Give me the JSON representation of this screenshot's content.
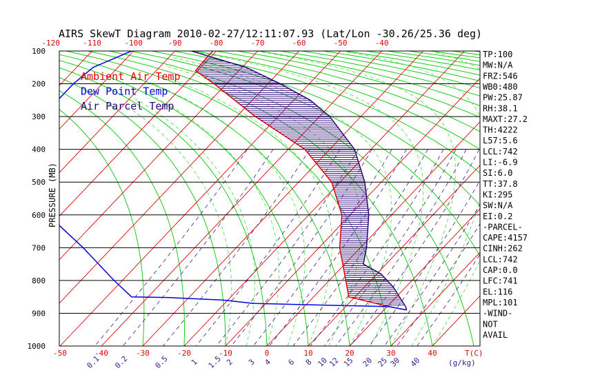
{
  "chart_data": {
    "type": "skewt",
    "title": "AIRS SkewT Diagram 2010-02-27/12:11:07.93 (Lat/Lon -30.26/25.36 deg)",
    "ylabel": "PRESSURE (MB)",
    "xlabel": "T(C)",
    "mixing_ratio_unit": "(g/kg)",
    "pressure_ticks": [
      100,
      200,
      300,
      400,
      500,
      600,
      700,
      800,
      900,
      1000
    ],
    "top_temp_ticks": [
      "-120",
      "-110",
      "-100",
      "-90",
      "-80",
      "-70",
      "-60",
      "-50",
      "-40"
    ],
    "bottom_temp_ticks": [
      "-50",
      "-40",
      "-30",
      "-20",
      "-10",
      "0",
      "10",
      "20",
      "30",
      "40"
    ],
    "mixing_ratio_ticks": [
      "0.1",
      "0.2",
      "0.5",
      "1",
      "1.5",
      "2",
      "3",
      "4",
      "6",
      "8",
      "10",
      "12",
      "15",
      "20",
      "25",
      "30",
      "40"
    ],
    "legend": [
      {
        "label": "Ambient Air Temp",
        "color": "#e00000"
      },
      {
        "label": "Dew Point Temp",
        "color": "#0000e0"
      },
      {
        "label": "Air Parcel Temp",
        "color": "#2a007a"
      }
    ],
    "series": [
      {
        "name": "Ambient Air Temp",
        "color": "#e00000",
        "points": [
          [
            100,
            -80.8
          ],
          [
            120,
            -80.8
          ],
          [
            160,
            -80.5
          ],
          [
            200,
            -73
          ],
          [
            300,
            -55.5
          ],
          [
            400,
            -36
          ],
          [
            500,
            -22
          ],
          [
            600,
            -12
          ],
          [
            700,
            -5
          ],
          [
            800,
            4
          ],
          [
            850,
            8.5
          ],
          [
            880,
            20.5
          ],
          [
            890,
            25.5
          ]
        ]
      },
      {
        "name": "Dew Point Temp",
        "color": "#0000e0",
        "points": [
          [
            100,
            -100.5
          ],
          [
            150,
            -106
          ],
          [
            200,
            -107
          ],
          [
            250,
            -107
          ],
          [
            300,
            -110
          ],
          [
            400,
            -104
          ],
          [
            500,
            -96
          ],
          [
            600,
            -83
          ],
          [
            700,
            -67
          ],
          [
            800,
            -52
          ],
          [
            850,
            -44
          ],
          [
            852,
            -35
          ],
          [
            860,
            -21
          ],
          [
            870,
            -13
          ],
          [
            880,
            20.5
          ],
          [
            890,
            25.5
          ]
        ]
      },
      {
        "name": "Air Parcel Temp",
        "color": "#2a007a",
        "points": [
          [
            100,
            -86
          ],
          [
            150,
            -69
          ],
          [
            200,
            -57
          ],
          [
            250,
            -46
          ],
          [
            300,
            -37.5
          ],
          [
            400,
            -24
          ],
          [
            500,
            -14
          ],
          [
            600,
            -5.5
          ],
          [
            700,
            1.5
          ],
          [
            750,
            4.5
          ],
          [
            780,
            11
          ],
          [
            820,
            17
          ],
          [
            860,
            22
          ],
          [
            880,
            24.5
          ],
          [
            890,
            25.5
          ]
        ]
      }
    ],
    "indices": [
      "TP:100",
      "MW:N/A",
      "FRZ:546",
      "WB0:480",
      "PW:25.87",
      "RH:38.1",
      "MAXT:27.2",
      "TH:4222",
      "L57:5.6",
      "LCL:742",
      "LI:-6.9",
      "SI:6.0",
      "TT:37.8",
      "KI:295",
      "SW:N/A",
      "EI:0.2",
      "-PARCEL-",
      "CAPE:4157",
      "CINH:262",
      "LCL:742",
      "CAP:0.0",
      "LFC:741",
      "EL:116",
      "MPL:101",
      "-WIND-",
      "NOT",
      "AVAIL"
    ],
    "colors": {
      "isotherm": "#e00000",
      "dry_adiabat": "#00c800",
      "moist_adiabat": "#44dd44",
      "mixing_ratio": "#3a1a8a",
      "isobar": "#000000",
      "cape_hatch": "#2a007a",
      "cin_hatch": "#e00000"
    }
  }
}
